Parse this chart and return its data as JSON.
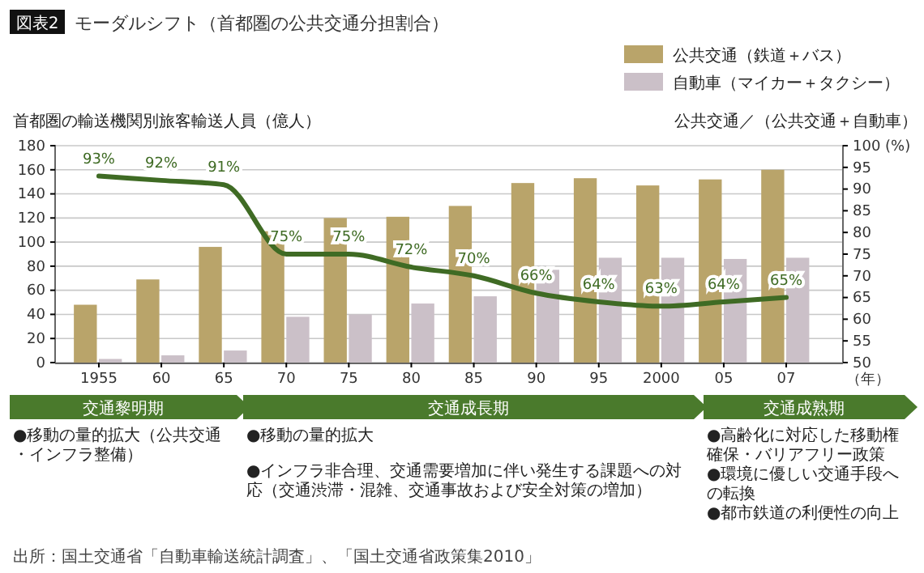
{
  "chart_data": {
    "type": "bar",
    "title": "モーダルシフト（首都圏の公共交通分担割合）",
    "categories": [
      "1955",
      "60",
      "65",
      "70",
      "75",
      "80",
      "85",
      "90",
      "95",
      "2000",
      "05",
      "07"
    ],
    "xlabel": "（年）",
    "ylabel": "首都圏の輸送機関別旅客輸送人員（億人）",
    "y2label": "公共交通／（公共交通＋自動車）",
    "ylim": [
      0,
      180
    ],
    "yticks": [
      0,
      20,
      40,
      60,
      80,
      100,
      120,
      140,
      160,
      180
    ],
    "y2lim": [
      50,
      100
    ],
    "y2ticks": [
      50,
      55,
      60,
      65,
      70,
      75,
      80,
      85,
      90,
      95,
      {
        "value": 100,
        "label": "100 (%)"
      }
    ],
    "grid": "y",
    "legend": "top right",
    "series": [
      {
        "name": "公共交通（鉄道＋バス）",
        "color": "#b9a46a",
        "values": [
          48,
          69,
          96,
          109,
          120,
          121,
          130,
          149,
          153,
          147,
          152,
          160
        ]
      },
      {
        "name": "自動車（マイカー＋タクシー）",
        "color": "#cbc0c8",
        "values": [
          3,
          6,
          10,
          38,
          40,
          49,
          55,
          77,
          87,
          87,
          86,
          87
        ]
      },
      {
        "type": "line",
        "axis": "y2",
        "color": "#3f6b24",
        "values": [
          93,
          92,
          91,
          75,
          75,
          72,
          70,
          66,
          64,
          63,
          64,
          65
        ],
        "value_labels": [
          "93%",
          "92%",
          "91%",
          "75%",
          "75%",
          "72%",
          "70%",
          "66%",
          "64%",
          "63%",
          "64%",
          "65%"
        ]
      }
    ],
    "annotations": [
      "図表2",
      "交通黎明期",
      "●移動の量的拡大（公共交通・インフラ整備）",
      "交通成長期",
      "●移動の量的拡大",
      "●インフラ非合理、交通需要増加に伴い発生する課題への対応（交通渋滞・混雑、交通事故および安全対策の増加）",
      "交通成熟期",
      "●高齢化に対応した移動権確保・バリアフリー政策",
      "●環境に優しい交通手段への転換",
      "●都市鉄道の利便性の向上",
      "出所：国土交通省「自動車輸送統計調査」、「国土交通省政策集2010」"
    ]
  }
}
